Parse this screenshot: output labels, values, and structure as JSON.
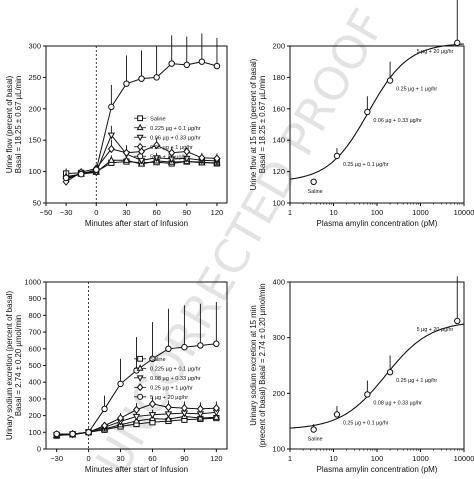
{
  "watermark": "UNCORRECTED PROOF",
  "chart_data": [
    {
      "id": "A",
      "type": "line",
      "title": "",
      "ylabel": [
        "Urine flow (percent of basal)",
        "Basal = 18.25 ± 0.67 µL/min"
      ],
      "xlabel": "Minutes after start of Infusion",
      "xlim": [
        -50,
        130
      ],
      "ylim": [
        50,
        300
      ],
      "xticks": [
        -50,
        -30,
        0,
        30,
        60,
        90,
        120
      ],
      "yticks": [
        50,
        100,
        150,
        200,
        250,
        300
      ],
      "x": [
        -30,
        -15,
        0,
        15,
        30,
        45,
        60,
        75,
        90,
        105,
        120
      ],
      "infusion_start": 0,
      "legend_position": "center",
      "series": [
        {
          "name": "Saline",
          "marker": "square",
          "values": [
            97,
            98,
            100,
            114,
            116,
            114,
            115,
            113,
            116,
            115,
            113
          ],
          "err": [
            8,
            6,
            5,
            8,
            8,
            8,
            8,
            6,
            6,
            6,
            6
          ]
        },
        {
          "name": "0.225 µg + 0.1 µg/hr",
          "marker": "triangle-up",
          "values": [
            92,
            96,
            99,
            118,
            118,
            112,
            117,
            115,
            116,
            114,
            114
          ],
          "err": [
            8,
            6,
            5,
            8,
            8,
            6,
            6,
            6,
            6,
            6,
            6
          ]
        },
        {
          "name": "0.06 µg + 0.33 µg/hr",
          "marker": "triangle-down",
          "values": [
            88,
            97,
            99,
            158,
            128,
            118,
            122,
            120,
            121,
            118,
            117
          ],
          "err": [
            8,
            6,
            5,
            15,
            10,
            8,
            8,
            6,
            6,
            6,
            6
          ]
        },
        {
          "name": "0.25 µg + 1 µg/hr",
          "marker": "diamond",
          "values": [
            84,
            99,
            105,
            136,
            130,
            132,
            142,
            130,
            132,
            122,
            121
          ],
          "err": [
            8,
            6,
            5,
            15,
            12,
            10,
            12,
            10,
            8,
            8,
            8
          ]
        },
        {
          "name": "5 µg + 20 µg/hr",
          "marker": "circle",
          "values": [
            90,
            96,
            103,
            203,
            240,
            248,
            250,
            272,
            270,
            275,
            268
          ],
          "err": [
            8,
            6,
            8,
            35,
            45,
            45,
            50,
            45,
            45,
            45,
            45
          ]
        }
      ]
    },
    {
      "id": "B",
      "type": "scatter",
      "title": "",
      "ylabel": [
        "Urine flow at 15 min (percent of basal)",
        "Basal = 18.25 ± 0.67 µL/min"
      ],
      "xlabel": "Plasma amylin concentration (pM)",
      "xscale": "log",
      "xlim": [
        1,
        10000
      ],
      "ylim": [
        100,
        200
      ],
      "xticks": [
        1,
        10,
        100,
        1000,
        10000
      ],
      "xticklabels": [
        "1",
        "10",
        "100",
        "1000",
        "10000"
      ],
      "yticks": [
        100,
        120,
        140,
        160,
        180,
        200
      ],
      "points": [
        {
          "label": "Saline",
          "x": 3.5,
          "y": 113.5,
          "err": 2
        },
        {
          "label": "0.25 µg + 0.1 µg/hr",
          "x": 12,
          "y": 130,
          "err": 5
        },
        {
          "label": "0.06 µg + 0.33 µg/hr",
          "x": 60,
          "y": 158,
          "err": 10
        },
        {
          "label": "0.25 µg + 1 µg/hr",
          "x": 200,
          "y": 178,
          "err": 12
        },
        {
          "label": "5 µg + 20 µg/hr",
          "x": 7000,
          "y": 202,
          "err": 30
        }
      ],
      "fit_curve": "sigmoid"
    },
    {
      "id": "C",
      "type": "line",
      "title": "",
      "ylabel": [
        "Urinary sodium excretion (percent of basal)",
        "Basal = 2.74 ± 0.20 µmol/min"
      ],
      "xlabel": "Minutes after start of Infusion",
      "xlim": [
        -40,
        130
      ],
      "ylim": [
        0,
        1000
      ],
      "xticks": [
        -30,
        0,
        30,
        60,
        90,
        120
      ],
      "yticks": [
        0,
        100,
        200,
        300,
        400,
        500,
        600,
        700,
        800,
        900,
        1000
      ],
      "x": [
        -30,
        -15,
        0,
        15,
        30,
        45,
        60,
        75,
        90,
        105,
        120
      ],
      "infusion_start": 0,
      "legend_position": "center",
      "series": [
        {
          "name": "Saline",
          "marker": "square",
          "values": [
            80,
            88,
            100,
            115,
            135,
            150,
            160,
            168,
            175,
            180,
            185
          ],
          "err": [
            10,
            10,
            8,
            12,
            15,
            20,
            20,
            20,
            20,
            20,
            20
          ]
        },
        {
          "name": "0.225 µg + 0.1 µg/hr",
          "marker": "triangle-up",
          "values": [
            82,
            85,
            100,
            120,
            145,
            168,
            182,
            178,
            195,
            185,
            190
          ],
          "err": [
            10,
            10,
            8,
            15,
            20,
            25,
            25,
            25,
            25,
            25,
            25
          ]
        },
        {
          "name": "0.08 µg + 0.33 µg/hr",
          "marker": "triangle-down",
          "values": [
            85,
            88,
            100,
            130,
            165,
            195,
            205,
            210,
            215,
            210,
            220
          ],
          "err": [
            10,
            10,
            8,
            15,
            20,
            30,
            30,
            30,
            30,
            30,
            30
          ]
        },
        {
          "name": "0.25 µg + 1 µg/hr",
          "marker": "diamond",
          "values": [
            88,
            90,
            100,
            140,
            185,
            235,
            270,
            250,
            245,
            240,
            245
          ],
          "err": [
            10,
            10,
            8,
            20,
            30,
            40,
            45,
            40,
            40,
            40,
            40
          ]
        },
        {
          "name": "5 µg + 20 µg/hr",
          "marker": "circle",
          "values": [
            90,
            90,
            100,
            240,
            390,
            470,
            540,
            600,
            610,
            620,
            630
          ],
          "err": [
            10,
            10,
            10,
            80,
            150,
            200,
            220,
            240,
            250,
            250,
            250
          ]
        }
      ]
    },
    {
      "id": "D",
      "type": "scatter",
      "title": "",
      "ylabel": [
        "Urinary sodium excretion at 15 min",
        "(precent of basal) Basal = 2.74 ± 0.20 µmol/min"
      ],
      "xlabel": "Plasma amylin concentration (pM)",
      "xscale": "log",
      "xlim": [
        1,
        10000
      ],
      "ylim": [
        100,
        400
      ],
      "xticks": [
        1,
        10,
        100,
        1000,
        10000
      ],
      "xticklabels": [
        "1",
        "10",
        "100",
        "1000",
        "10000"
      ],
      "yticks": [
        100,
        200,
        300,
        400
      ],
      "points": [
        {
          "label": "Saline",
          "x": 3.5,
          "y": 135,
          "err": 10
        },
        {
          "label": "0.25 µg + 0.1 µg/hr",
          "x": 12,
          "y": 162,
          "err": 15
        },
        {
          "label": "0.08 µg + 0.33 µg/hr",
          "x": 60,
          "y": 198,
          "err": 25
        },
        {
          "label": "0.25 µg + 1 µg/hr",
          "x": 200,
          "y": 238,
          "err": 30
        },
        {
          "label": "5 µg + 20 µg/hr",
          "x": 7000,
          "y": 330,
          "err": 80
        }
      ],
      "fit_curve": "sigmoid"
    }
  ]
}
